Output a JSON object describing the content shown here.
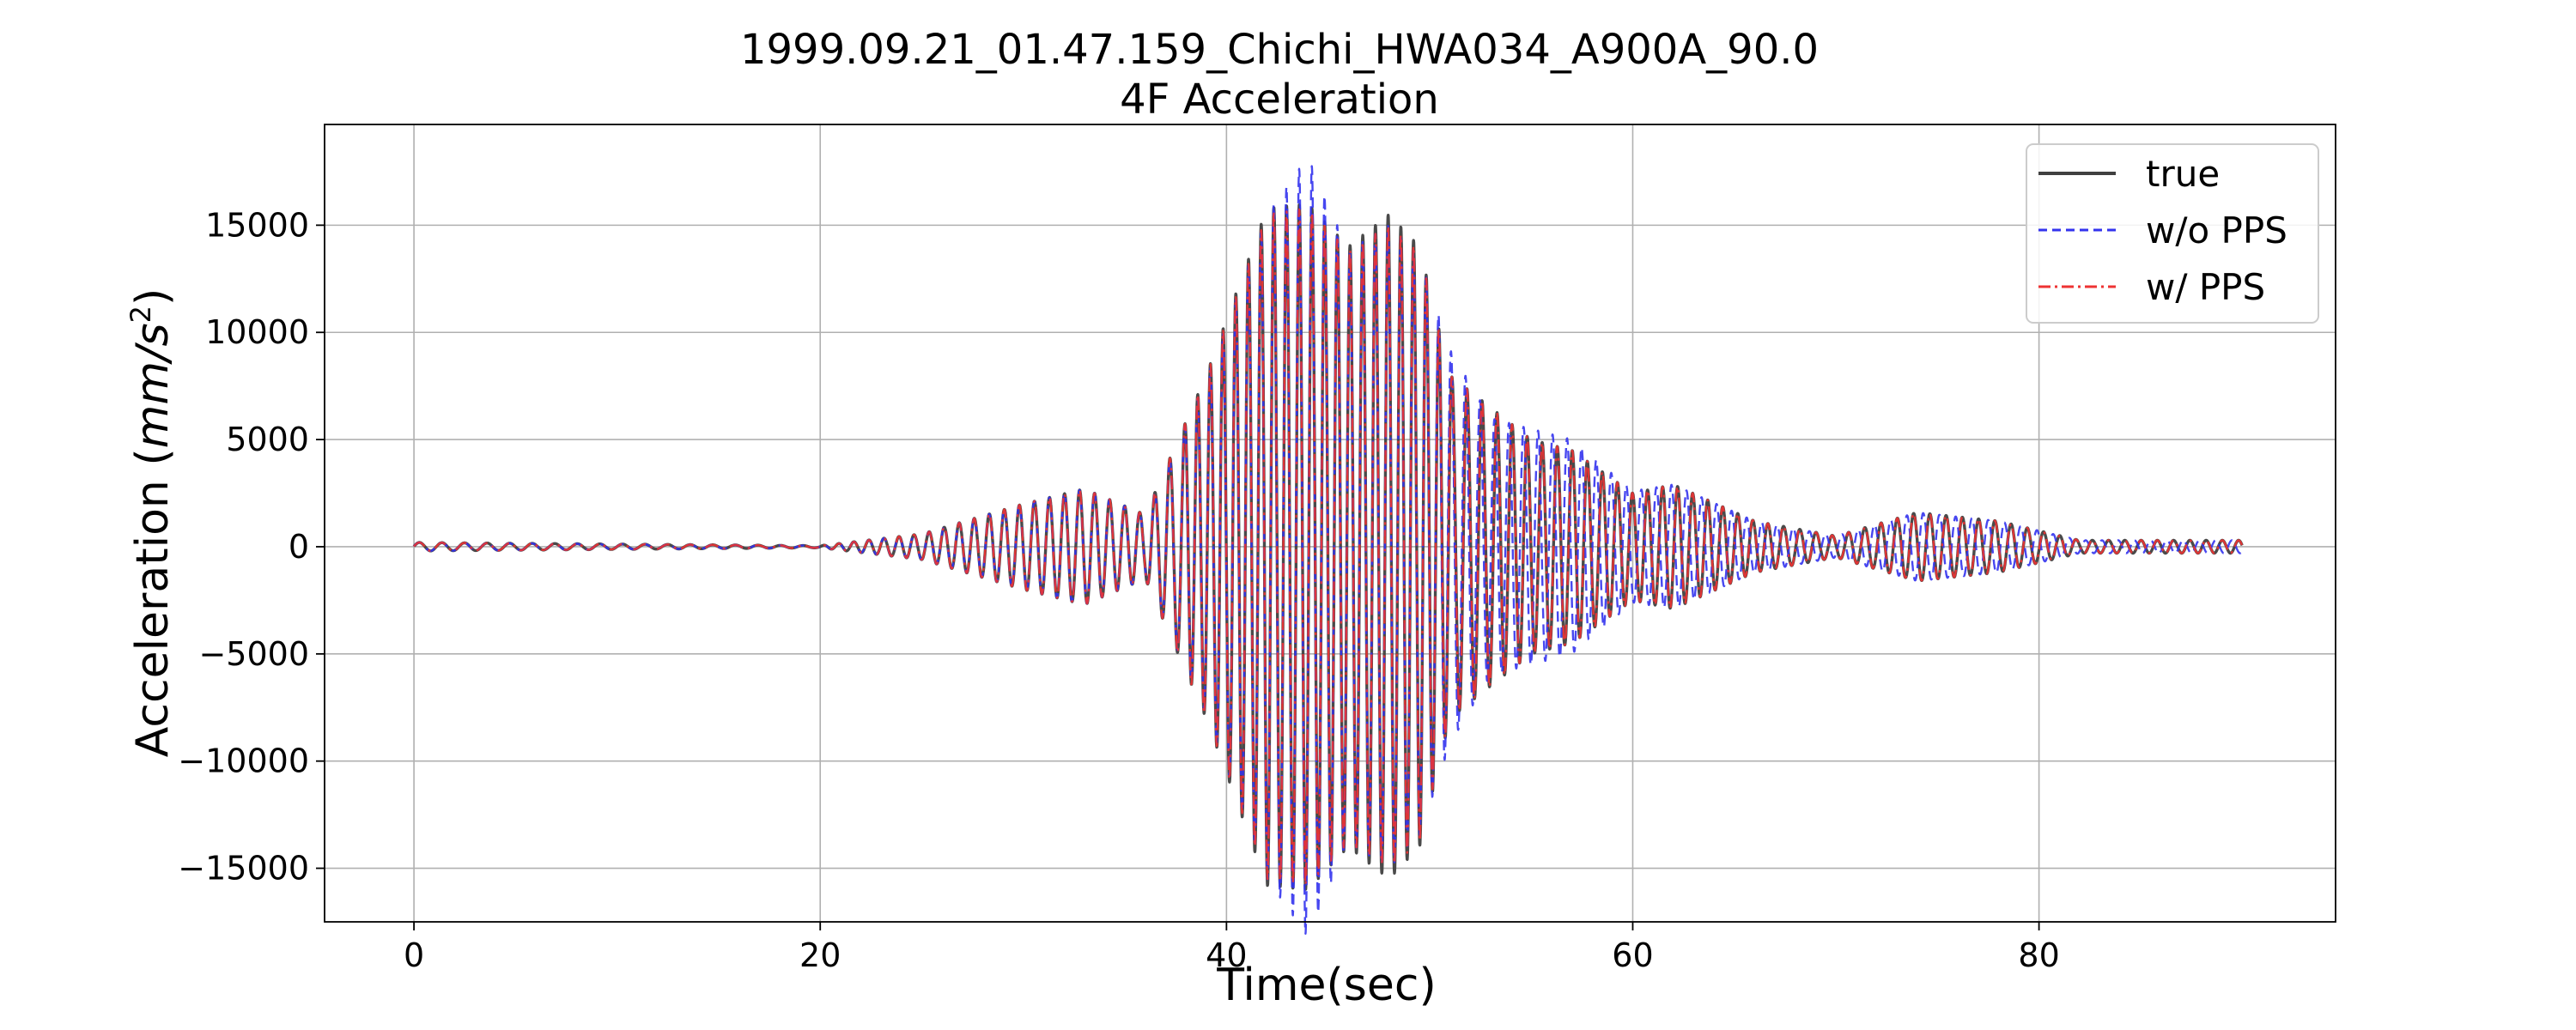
{
  "chart_data": {
    "type": "line",
    "title": "1999.09.21_01.47.159_Chichi_HWA034_A900A_90.0",
    "subtitle": "4F Acceleration",
    "xlabel": "Time(sec)",
    "ylabel_main": "Acceleration (",
    "ylabel_unit": "mm/s",
    "ylabel_exp": "2",
    "ylabel_close": ")",
    "xlim": [
      -4.4,
      94.6
    ],
    "ylim": [
      -17500,
      19700
    ],
    "x_ticks": [
      0,
      20,
      40,
      60,
      80
    ],
    "x_tick_labels": [
      "0",
      "20",
      "40",
      "60",
      "80"
    ],
    "y_ticks": [
      -15000,
      -10000,
      -5000,
      0,
      5000,
      10000,
      15000
    ],
    "y_tick_labels": [
      "−15000",
      "−10000",
      "−5000",
      "0",
      "5000",
      "10000",
      "15000"
    ],
    "grid": true,
    "legend_position": "top-right",
    "duration": 90,
    "signal_peaks": {
      "true": [
        [
          0,
          200
        ],
        [
          20,
          50
        ],
        [
          25,
          600
        ],
        [
          30,
          2000
        ],
        [
          33,
          2700
        ],
        [
          36,
          1500
        ],
        [
          39,
          8000
        ],
        [
          42,
          15800
        ],
        [
          44,
          16000
        ],
        [
          46,
          14000
        ],
        [
          48,
          15500
        ],
        [
          49.5,
          14000
        ],
        [
          51,
          8000
        ],
        [
          55,
          5000
        ],
        [
          57,
          4500
        ],
        [
          60,
          2500
        ],
        [
          62,
          2900
        ],
        [
          66,
          1200
        ],
        [
          70,
          500
        ],
        [
          74,
          1600
        ],
        [
          78,
          1200
        ],
        [
          82,
          300
        ],
        [
          90,
          300
        ]
      ],
      "w/o PPS": [
        [
          0,
          200
        ],
        [
          20,
          50
        ],
        [
          25,
          600
        ],
        [
          30,
          2000
        ],
        [
          33,
          2700
        ],
        [
          36,
          1500
        ],
        [
          39,
          7800
        ],
        [
          42,
          15500
        ],
        [
          44,
          18200
        ],
        [
          46,
          13800
        ],
        [
          48,
          15000
        ],
        [
          49.5,
          13500
        ],
        [
          51,
          9200
        ],
        [
          53,
          6000
        ],
        [
          55,
          5500
        ],
        [
          57,
          5000
        ],
        [
          60,
          2600
        ],
        [
          62,
          2900
        ],
        [
          66,
          1200
        ],
        [
          70,
          500
        ],
        [
          74,
          1600
        ],
        [
          78,
          1200
        ],
        [
          82,
          300
        ],
        [
          90,
          300
        ]
      ],
      "w/ PPS": [
        [
          0,
          200
        ],
        [
          20,
          50
        ],
        [
          25,
          600
        ],
        [
          30,
          2000
        ],
        [
          33,
          2700
        ],
        [
          36,
          1500
        ],
        [
          39,
          8000
        ],
        [
          42,
          15500
        ],
        [
          44,
          15800
        ],
        [
          46,
          13800
        ],
        [
          48,
          15000
        ],
        [
          49.5,
          13800
        ],
        [
          51,
          8000
        ],
        [
          55,
          5000
        ],
        [
          57,
          4500
        ],
        [
          60,
          2500
        ],
        [
          62,
          2900
        ],
        [
          66,
          1200
        ],
        [
          70,
          500
        ],
        [
          74,
          1600
        ],
        [
          78,
          1200
        ],
        [
          82,
          300
        ],
        [
          90,
          300
        ]
      ]
    },
    "series": [
      {
        "name": "true",
        "color": "#404040",
        "dash": "solid"
      },
      {
        "name": "w/o PPS",
        "color": "#3333ee",
        "dash": "dashed"
      },
      {
        "name": "w/ PPS",
        "color": "#ee3333",
        "dash": "dashdot"
      }
    ]
  }
}
